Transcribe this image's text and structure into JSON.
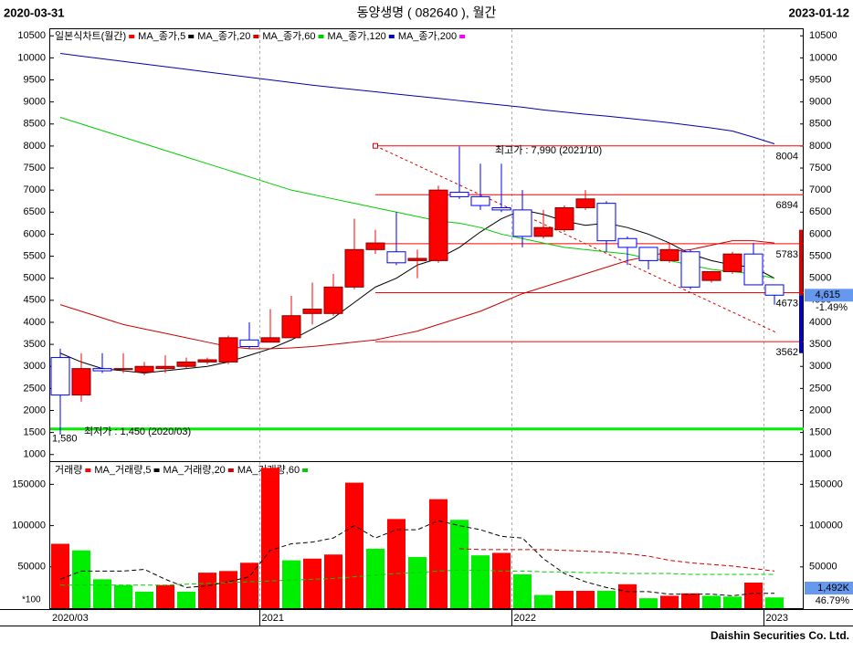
{
  "header": {
    "start_date": "2020-03-31",
    "title": "동양생명 ( 082640 ), 월간",
    "end_date": "2023-01-12"
  },
  "chart_data": [
    {
      "type": "candlestick",
      "legend_title": "일본식차트(월간)",
      "legend_color": "#ff0000",
      "categories": [
        "2020/03",
        null,
        null,
        null,
        null,
        null,
        null,
        null,
        null,
        null,
        "2021",
        null,
        null,
        null,
        null,
        null,
        null,
        null,
        null,
        null,
        null,
        null,
        "2022",
        null,
        null,
        null,
        null,
        null,
        null,
        null,
        null,
        null,
        null,
        null,
        "2023"
      ],
      "open": [
        3200,
        2350,
        2950,
        2950,
        2870,
        2950,
        3000,
        3100,
        3100,
        3600,
        3550,
        3650,
        4200,
        4200,
        4800,
        5650,
        5600,
        5400,
        5400,
        6950,
        6850,
        6600,
        6550,
        5950,
        6100,
        6600,
        6700,
        5900,
        5700,
        5400,
        5600,
        4950,
        5150,
        5550,
        4850
      ],
      "high": [
        3400,
        3300,
        3300,
        3300,
        3100,
        3250,
        3200,
        3200,
        3700,
        4000,
        4300,
        4600,
        4900,
        5100,
        6350,
        6100,
        6500,
        5650,
        7100,
        7990,
        7600,
        7600,
        7000,
        6550,
        6650,
        7000,
        6750,
        5950,
        5700,
        5800,
        5650,
        5150,
        5600,
        5800,
        4850
      ],
      "low": [
        1450,
        2200,
        2850,
        2850,
        2800,
        2850,
        2950,
        3050,
        3050,
        3400,
        3550,
        3650,
        3950,
        4150,
        4750,
        5550,
        5300,
        5000,
        5350,
        6800,
        6550,
        6500,
        5700,
        5900,
        6050,
        6550,
        5600,
        5300,
        5200,
        5350,
        4750,
        4900,
        5100,
        4850,
        4400
      ],
      "close": [
        2350,
        2950,
        2900,
        2950,
        3000,
        3000,
        3100,
        3150,
        3650,
        3450,
        3650,
        4150,
        4300,
        4800,
        5650,
        5800,
        5350,
        5450,
        7000,
        6850,
        6650,
        6550,
        5950,
        6150,
        6600,
        6800,
        5850,
        5700,
        5400,
        5650,
        4800,
        5150,
        5550,
        4850,
        4615
      ],
      "up_color": "#ff0000",
      "down_color": "#0000ff",
      "series": [
        {
          "name": "MA_종가,5",
          "color": "#000000",
          "values": [
            3300,
            3100,
            2950,
            2900,
            2850,
            2900,
            2950,
            3000,
            3100,
            3250,
            3400,
            3600,
            3850,
            4100,
            4450,
            4800,
            5000,
            5300,
            5450,
            5700,
            6050,
            6350,
            6550,
            6450,
            6300,
            6200,
            6250,
            6150,
            6000,
            5800,
            5550,
            5400,
            5300,
            5250,
            5000
          ]
        },
        {
          "name": "MA_종가,20",
          "color": "#cc0000",
          "values": [
            4400,
            4250,
            4100,
            3950,
            3850,
            3750,
            3650,
            3550,
            3450,
            3400,
            3400,
            3420,
            3450,
            3500,
            3550,
            3600,
            3700,
            3800,
            3950,
            4100,
            4250,
            4450,
            4650,
            4800,
            4950,
            5100,
            5250,
            5400,
            5500,
            5600,
            5650,
            5750,
            5850,
            5850,
            5800
          ]
        },
        {
          "name": "MA_종가,60",
          "color": "#00cc00",
          "values": [
            8650,
            8500,
            8350,
            8200,
            8050,
            7900,
            7750,
            7600,
            7450,
            7300,
            7150,
            7000,
            6900,
            6800,
            6700,
            6600,
            6500,
            6400,
            6300,
            6250,
            6150,
            6000,
            5900,
            5800,
            5700,
            5650,
            5600,
            5550,
            5450,
            5400,
            5300,
            5200,
            5150,
            5100,
            5000
          ]
        },
        {
          "name": "MA_종가,120",
          "color": "#0000aa",
          "values": [
            10100,
            10040,
            9980,
            9920,
            9860,
            9800,
            9740,
            9680,
            9620,
            9560,
            9500,
            9440,
            9380,
            9330,
            9280,
            9230,
            9180,
            9130,
            9080,
            9030,
            8980,
            8930,
            8880,
            8820,
            8770,
            8720,
            8680,
            8630,
            8580,
            8530,
            8470,
            8410,
            8340,
            8200,
            8050
          ]
        },
        {
          "name": "MA_종가,200",
          "color": "#ff00ff",
          "values": [
            null,
            null,
            null,
            null,
            null,
            null,
            null,
            null,
            null,
            null,
            null,
            null,
            null,
            null,
            null,
            null,
            null,
            null,
            null,
            null,
            null,
            null,
            null,
            null,
            null,
            null,
            null,
            null,
            null,
            null,
            null,
            null,
            null,
            null,
            null
          ]
        }
      ],
      "ylim": [
        850,
        10650
      ],
      "yticks": [
        1000,
        1500,
        2000,
        2500,
        3000,
        3500,
        4000,
        4500,
        5000,
        5500,
        6000,
        6500,
        7000,
        7500,
        8000,
        8500,
        9000,
        9500,
        10000,
        10500
      ],
      "levels": [
        8004,
        6894,
        5783,
        4673,
        3562
      ],
      "level_color": "#ff0000",
      "high_note": "최고가 : 7,990 (2021/10)",
      "low_note": "최저가 : 1,450 (2020/03)",
      "support": {
        "value": 1580,
        "label": "1,580"
      },
      "support_color": "#00ee00",
      "last": {
        "value": 4615,
        "label": "4,615"
      },
      "change": "-1.49%"
    },
    {
      "type": "volume",
      "legend_title": "거래량",
      "legend_color": "#ff0000",
      "values": [
        78000,
        70000,
        35000,
        28000,
        20000,
        28000,
        20000,
        43000,
        45000,
        55000,
        170000,
        58000,
        60000,
        65000,
        152000,
        72000,
        108000,
        62000,
        132000,
        107000,
        64000,
        67000,
        41000,
        16000,
        21000,
        21000,
        21000,
        29000,
        12000,
        15000,
        18000,
        15000,
        14000,
        31000,
        13000
      ],
      "colors": [
        "#ff0000",
        "#00ee00",
        "#00ee00",
        "#00ee00",
        "#00ee00",
        "#ff0000",
        "#00ee00",
        "#ff0000",
        "#ff0000",
        "#ff0000",
        "#ff0000",
        "#00ee00",
        "#ff0000",
        "#ff0000",
        "#ff0000",
        "#00ee00",
        "#ff0000",
        "#00ee00",
        "#ff0000",
        "#00ee00",
        "#00ee00",
        "#ff0000",
        "#00ee00",
        "#00ee00",
        "#ff0000",
        "#ff0000",
        "#00ee00",
        "#ff0000",
        "#00ee00",
        "#ff0000",
        "#ff0000",
        "#00ee00",
        "#00ee00",
        "#ff0000",
        "#00ee00"
      ],
      "series": [
        {
          "name": "MA_거래량,5",
          "color": "#000000",
          "values": [
            35000,
            45000,
            45000,
            45000,
            47000,
            35000,
            25000,
            27000,
            32000,
            38000,
            70000,
            78000,
            80000,
            85000,
            100000,
            85000,
            95000,
            95000,
            106000,
            100000,
            95000,
            87000,
            85000,
            60000,
            42000,
            32000,
            25000,
            20000,
            20000,
            17000,
            17000,
            17000,
            15000,
            18000,
            18000
          ]
        },
        {
          "name": "MA_거래량,20",
          "color": "#cc0000",
          "values": [
            null,
            null,
            null,
            null,
            null,
            null,
            null,
            null,
            null,
            null,
            null,
            null,
            null,
            null,
            null,
            null,
            null,
            null,
            null,
            72000,
            71000,
            71000,
            71000,
            71000,
            70000,
            69000,
            68000,
            66000,
            63000,
            58000,
            55000,
            53000,
            51000,
            48000,
            45000
          ]
        },
        {
          "name": "MA_거래량,60",
          "color": "#00cc00",
          "values": [
            28000,
            28000,
            28000,
            28000,
            28000,
            28000,
            29000,
            30000,
            31000,
            32000,
            33000,
            34000,
            35000,
            36000,
            38000,
            40000,
            42000,
            43000,
            45000,
            46000,
            46000,
            45000,
            45000,
            44000,
            44000,
            43000,
            43000,
            42000,
            42000,
            42000,
            41000,
            41000,
            41000,
            41000,
            41000
          ]
        }
      ],
      "ylim": [
        0,
        177000
      ],
      "yticks": [
        50000,
        100000,
        150000
      ],
      "unit": "*100",
      "last": "1,492K",
      "ratio": "46.79%"
    }
  ],
  "footer": "Daishin Securities Co. Ltd."
}
